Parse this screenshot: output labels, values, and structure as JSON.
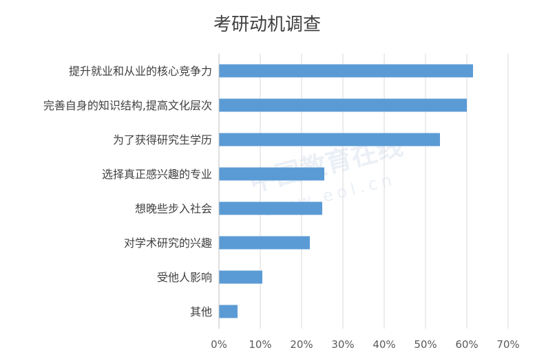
{
  "watermark": {
    "text": "中国教育在线",
    "url": "www.eol.cn"
  },
  "chart_data": {
    "type": "bar",
    "orientation": "horizontal",
    "title": "考研动机调查",
    "categories": [
      "提升就业和从业的核心竞争力",
      "完善自身的知识结构,提高文化层次",
      "为了获得研究生学历",
      "选择真正感兴趣的专业",
      "想晚些步入社会",
      "对学术研究的兴趣",
      "受他人影响",
      "其他"
    ],
    "values": [
      61.5,
      60.0,
      53.5,
      25.5,
      25.0,
      22.0,
      10.5,
      4.5
    ],
    "xlim": [
      0,
      70
    ],
    "xticks": [
      0,
      10,
      20,
      30,
      40,
      50,
      60,
      70
    ],
    "tick_labels": [
      "0%",
      "10%",
      "20%",
      "30%",
      "40%",
      "50%",
      "60%",
      "70%"
    ],
    "xlabel": "",
    "ylabel": "",
    "grid": "vertical",
    "legend": "none",
    "bar_color": "#5b9bd5",
    "grid_color": "#d9d9d9"
  }
}
